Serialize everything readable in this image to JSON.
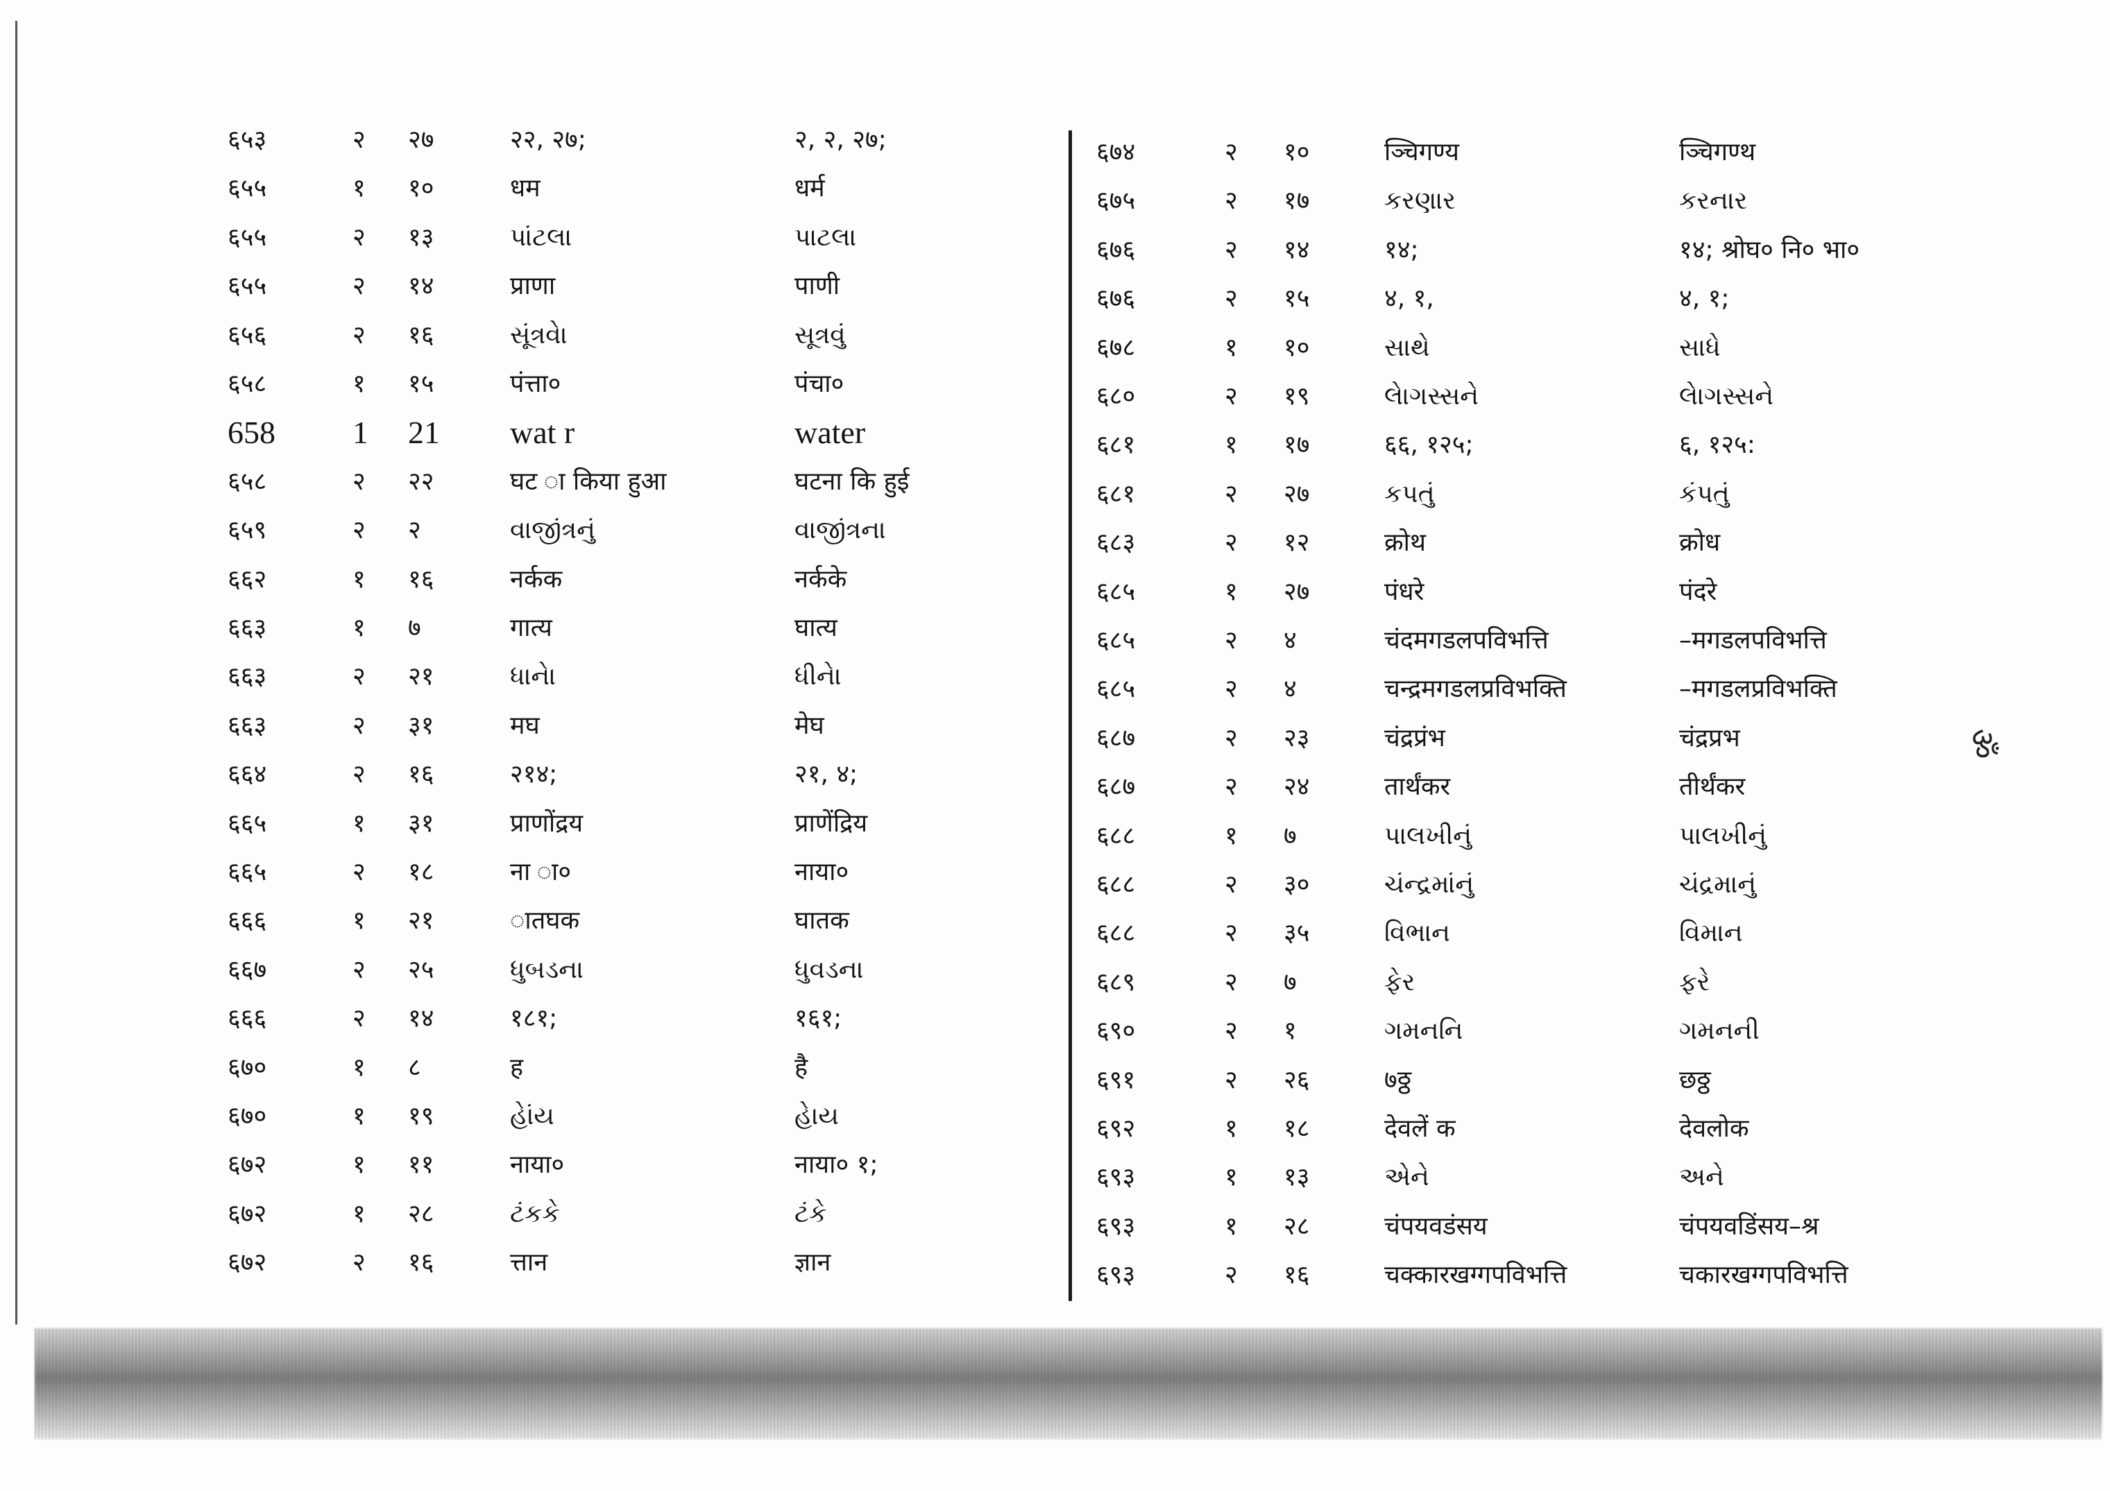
{
  "margin_mark": "ॐ",
  "left_rows": [
    [
      "६५३",
      "२",
      "२७",
      "२२, २७;",
      "२, २, २७;"
    ],
    [
      "६५५",
      "१",
      "१०",
      "धम",
      "धर्म"
    ],
    [
      "६५५",
      "२",
      "१३",
      "પાંટલા",
      "પાટલા"
    ],
    [
      "६५५",
      "२",
      "१४",
      "प्राणा",
      "पाणी"
    ],
    [
      "६५६",
      "२",
      "१६",
      "સૂંત્રવેા",
      "સૂત્રવું"
    ],
    [
      "६५८",
      "१",
      "१५",
      "पंत्ता०",
      "पंचा०"
    ],
    [
      "658",
      "1",
      "21",
      "wat r",
      "water"
    ],
    [
      "६५८",
      "२",
      "२२",
      "घट ा किया हुआ",
      "घटना कि हुई"
    ],
    [
      "६५९",
      "२",
      "२",
      "વાજીંત્રનું",
      "વાજીંત્રના"
    ],
    [
      "६६२",
      "१",
      "१६",
      "नर्कक",
      "नर्कके"
    ],
    [
      "६६३",
      "१",
      "७",
      "गात्य",
      "घात्य"
    ],
    [
      "६६३",
      "२",
      "२१",
      "ધાનેા",
      "ધીનેા"
    ],
    [
      "६६३",
      "२",
      "३१",
      "मघ",
      "मेघ"
    ],
    [
      "६६४",
      "२",
      "१६",
      "२१४;",
      "२१, ४;"
    ],
    [
      "६६५",
      "१",
      "३१",
      "प्राणोंद्रय",
      "प्राणेंद्रिय"
    ],
    [
      "६६५",
      "२",
      "१८",
      "ना ा०",
      "नाया०"
    ],
    [
      "६६६",
      "१",
      "२१",
      "ातघक",
      "घातक"
    ],
    [
      "६६७",
      "२",
      "२५",
      "ધુબડના",
      "ધુવડના"
    ],
    [
      "६६६",
      "२",
      "१४",
      "१८१;",
      "१६१;"
    ],
    [
      "६७०",
      "१",
      "८",
      "ह",
      "है"
    ],
    [
      "६७०",
      "१",
      "१९",
      "હેાંય",
      "હેાય"
    ],
    [
      "६७२",
      "१",
      "११",
      "नाया०",
      "नाया० १;"
    ],
    [
      "६७२",
      "१",
      "२८",
      "ટંકકે",
      "ટંકે"
    ],
    [
      "६७२",
      "२",
      "१६",
      "त्तान",
      "ज्ञान"
    ]
  ],
  "right_rows": [
    [
      "६७४",
      "२",
      "१०",
      "ञ्चिगण्य",
      "ञ्चिगण्थ"
    ],
    [
      "६७५",
      "२",
      "१७",
      "કરણાર",
      "કરનાર"
    ],
    [
      "६७६",
      "२",
      "१४",
      "१४;",
      "१४; श्रोघ० नि० भा०"
    ],
    [
      "६७६",
      "२",
      "१५",
      "४, १,",
      "४, १;"
    ],
    [
      "६७८",
      "१",
      "१०",
      "સાથે",
      "સાધે"
    ],
    [
      "६८०",
      "२",
      "१९",
      "લેાગસ્સને",
      "લેાગસ્સને"
    ],
    [
      "६८१",
      "१",
      "१७",
      "६६, १२५;",
      "६, १२५:"
    ],
    [
      "६८१",
      "२",
      "२७",
      "કપતું",
      "કંપતું"
    ],
    [
      "६८३",
      "२",
      "१२",
      "क्रोथ",
      "क्रोध"
    ],
    [
      "६८५",
      "१",
      "२७",
      "पंधरे",
      "पंदरे"
    ],
    [
      "६८५",
      "२",
      "४",
      "चंदमगडलपविभत्ति",
      "–मगडलपविभत्ति"
    ],
    [
      "६८५",
      "२",
      "४",
      "चन्द्रमगडलप्रविभक्ति",
      "–मगडलप्रविभक्ति"
    ],
    [
      "६८७",
      "२",
      "२३",
      "चंद्रप्रंभ",
      "चंद्रप्रभ"
    ],
    [
      "६८७",
      "२",
      "२४",
      "तार्थंकर",
      "तीर्थंकर"
    ],
    [
      "६८८",
      "१",
      "७",
      "પાલખીનું",
      "પાલખીનું"
    ],
    [
      "६८८",
      "२",
      "३०",
      "ચંન્દ્રમાંનું",
      "ચંદ્રમાનું"
    ],
    [
      "६८८",
      "२",
      "३५",
      "વિભાન",
      "વિમાન"
    ],
    [
      "६८९",
      "२",
      "७",
      "ફેર",
      "ફરે"
    ],
    [
      "६९०",
      "२",
      "१",
      "ગમનનિ",
      "ગમનની"
    ],
    [
      "६९१",
      "२",
      "२६",
      "७ठ्ठ",
      "छठ्ठ"
    ],
    [
      "६९२",
      "१",
      "१८",
      "देवलें क",
      "देवलोक"
    ],
    [
      "६९३",
      "१",
      "१३",
      "એને",
      "અને"
    ],
    [
      "६९३",
      "१",
      "२८",
      "चंपयवडंसय",
      "चंपयवडिंसय–श्र"
    ],
    [
      "६९३",
      "२",
      "१६",
      "चक्कारखग्गपविभत्ति",
      "चकारखग्गपविभत्ति"
    ]
  ]
}
